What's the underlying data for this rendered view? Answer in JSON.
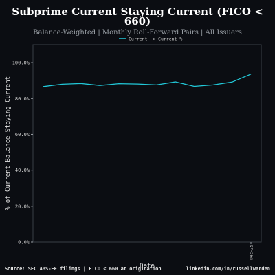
{
  "chart_data": {
    "type": "line",
    "title": "Subprime Current Staying Current (FICO < 660)",
    "subtitle": "Balance-Weighted | Monthly Roll-Forward Pairs | All Issuers",
    "xlabel": "Date",
    "ylabel": "% of Current Balance Staying Current",
    "ylim": [
      0,
      1.1
    ],
    "yticks": [
      0.0,
      0.2,
      0.4,
      0.6,
      0.8,
      1.0
    ],
    "ytick_labels": [
      "0.0%",
      "20.0%",
      "40.0%",
      "60.0%",
      "80.0%",
      "100.0%"
    ],
    "x_tick_labels": [
      "Dec-25"
    ],
    "x_tick_index": 11,
    "legend": {
      "placement": "top-center",
      "entries": [
        "Current -> Current %"
      ]
    },
    "grid": false,
    "series": [
      {
        "name": "Current -> Current %",
        "color": "#22c8d8",
        "values": [
          0.867,
          0.88,
          0.884,
          0.873,
          0.883,
          0.881,
          0.876,
          0.893,
          0.868,
          0.876,
          0.892,
          0.936
        ]
      }
    ]
  },
  "footer": {
    "source": "Source: SEC ABS-EE filings | FICO < 660 at origination",
    "credit": "linkedin.com/in/russellwarden"
  }
}
